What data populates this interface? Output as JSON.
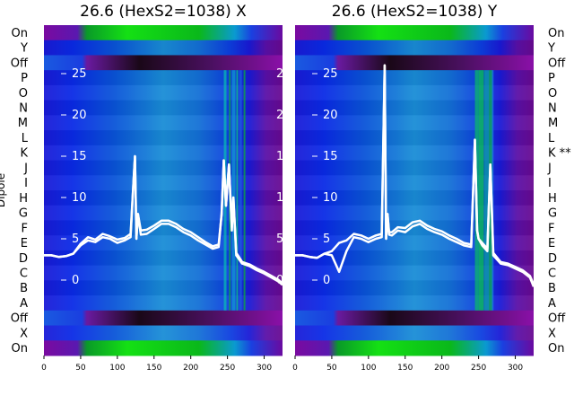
{
  "chart_data": [
    {
      "type": "heatmap",
      "title": "26.6 (HexS2=1038) X",
      "ylabel": "Dipole",
      "xticks": [
        0,
        50,
        100,
        150,
        200,
        250,
        300
      ],
      "xlim": [
        0,
        325
      ],
      "row_labels_top_to_bottom": [
        "On",
        "Y",
        "Off",
        "P",
        "O",
        "N",
        "M",
        "L",
        "K",
        "J",
        "I",
        "H",
        "G",
        "F",
        "E",
        "D",
        "C",
        "B",
        "A",
        "Off",
        "X",
        "On"
      ],
      "overlay_ticks": [
        25,
        20,
        15,
        10,
        5,
        0
      ],
      "overlay_ylim": [
        -2,
        30
      ],
      "trace_x": [
        0,
        10,
        20,
        30,
        40,
        50,
        60,
        70,
        80,
        90,
        100,
        110,
        118,
        122,
        124,
        126,
        128,
        132,
        140,
        150,
        160,
        170,
        180,
        190,
        200,
        210,
        220,
        230,
        238,
        242,
        245,
        248,
        252,
        256,
        258,
        262,
        270,
        280,
        290,
        300,
        310,
        320,
        325
      ],
      "trace_y": [
        3.0,
        3.0,
        2.8,
        2.9,
        3.2,
        4.2,
        4.8,
        4.6,
        5.2,
        5.0,
        4.5,
        4.8,
        5.2,
        12,
        15,
        5,
        8,
        5.5,
        5.6,
        6.2,
        6.8,
        6.8,
        6.4,
        5.8,
        5.4,
        4.8,
        4.3,
        3.8,
        4.0,
        8,
        14.5,
        9,
        14,
        6,
        10,
        3,
        2.0,
        1.7,
        1.2,
        0.8,
        0.3,
        -0.2,
        -0.6
      ],
      "trace_y2": [
        3.0,
        3.0,
        2.8,
        2.9,
        3.2,
        4.4,
        5.2,
        4.9,
        5.6,
        5.3,
        4.9,
        5.1,
        5.6,
        12,
        15,
        5,
        8,
        6.0,
        6.1,
        6.6,
        7.2,
        7.2,
        6.8,
        6.2,
        5.8,
        5.2,
        4.6,
        4.1,
        4.3,
        8,
        14.5,
        9,
        14,
        6.4,
        10,
        3.3,
        2.2,
        1.9,
        1.4,
        1.0,
        0.5,
        0.0,
        -0.4
      ]
    },
    {
      "type": "heatmap",
      "title": "26.6 (HexS2=1038) Y",
      "xticks": [
        0,
        50,
        100,
        150,
        200,
        250,
        300
      ],
      "xlim": [
        0,
        325
      ],
      "row_labels_top_to_bottom": [
        "On",
        "Y",
        "Off",
        "P",
        "O",
        "N",
        "M",
        "L",
        "K **",
        "J",
        "I",
        "H",
        "G",
        "F",
        "E",
        "D",
        "C",
        "B",
        "A",
        "Off",
        "X",
        "On"
      ],
      "overlay_ticks": [
        25,
        20,
        15,
        10,
        5,
        0
      ],
      "overlay_ylim": [
        -2,
        30
      ],
      "trace_x": [
        0,
        10,
        20,
        30,
        40,
        50,
        60,
        70,
        80,
        90,
        100,
        110,
        118,
        122,
        124,
        126,
        128,
        132,
        140,
        150,
        160,
        170,
        180,
        190,
        200,
        210,
        220,
        230,
        240,
        245,
        248,
        250,
        255,
        262,
        266,
        270,
        280,
        290,
        300,
        310,
        320,
        325
      ],
      "trace_y": [
        3.0,
        3.0,
        2.8,
        2.7,
        3.2,
        3.0,
        1.0,
        3.5,
        5.2,
        5.0,
        4.6,
        5.0,
        5.2,
        26,
        5,
        8,
        5.5,
        5.4,
        6.0,
        5.8,
        6.5,
        6.8,
        6.2,
        5.8,
        5.5,
        5.0,
        4.6,
        4.2,
        4.0,
        17,
        6,
        5,
        4.2,
        3.5,
        14,
        3,
        2.0,
        1.8,
        1.4,
        1.0,
        0.3,
        -0.8
      ],
      "trace_y2": [
        3.0,
        3.0,
        2.8,
        2.7,
        3.2,
        3.5,
        4.5,
        4.8,
        5.6,
        5.4,
        5.0,
        5.4,
        5.6,
        26,
        5,
        8,
        5.8,
        5.8,
        6.4,
        6.3,
        7.0,
        7.2,
        6.6,
        6.2,
        5.9,
        5.4,
        5.0,
        4.5,
        4.3,
        17,
        6,
        5,
        4.5,
        3.8,
        14,
        3.3,
        2.2,
        2.0,
        1.6,
        1.2,
        0.5,
        -0.5
      ]
    }
  ]
}
